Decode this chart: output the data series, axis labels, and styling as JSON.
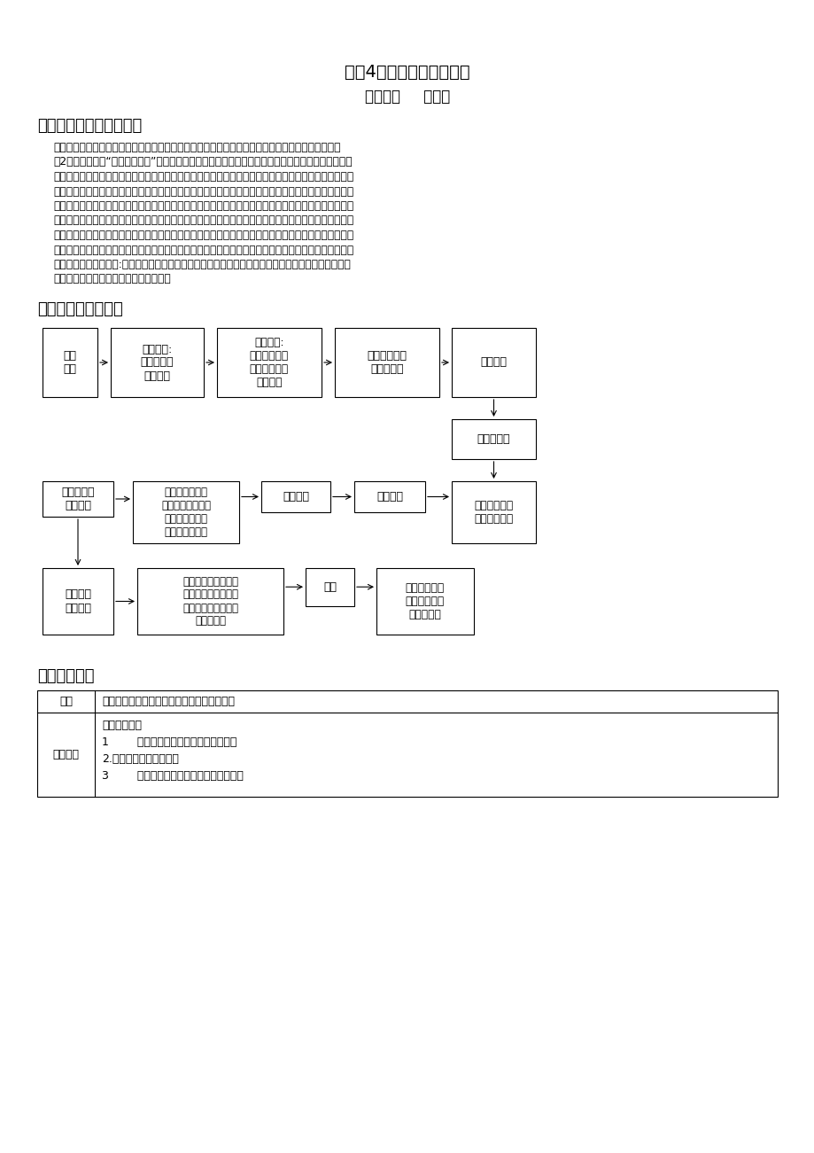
{
  "title1": "选修4第四章第一节原电池",
  "title2": "黄冈中学     甘文广",
  "section1": "一、教材分析与设计思路",
  "section2": "二、教学流程示意图",
  "section3": "三、教学设计",
  "para_lines": [
    "原电池是中学电化学基础知识，也是学生了解化学原理应用于生活实际的重要切入点之一。在必修化",
    "学2第二章第二节“化学能与电能”部分，学生已初步掌握将化学能转化为电能的途径，已有原电池、正",
    "极、负极、电解质溶液的概念。选修四第四章第一节通过探究实验，学生发现单液原电池电流不稳、放电",
    "效率低等缺点，激发学生解决问题的欲望，引导学生设计解决方案，培养学生科学探究能力，激发学生学",
    "习化学的兴趣。紧接着理论回归生活实际，让学生体会到化学在生活中的魅力。然后展示近三年中国原电",
    "池的研究成果，进一步激发学生研究原电池的热情，然后提供中学化学中的常见物质，满足学生自主设计",
    "并组装新的双液电池的求知欲，初步理解氧化还原反应与原电池的关系。学生展示研究成果，增强学生学",
    "习化学的自信心和自豪感。最后通过讨论，升华学生对原电池反应的认识，总结出原电池与氧化还原反应",
    "的关系，让学生认识到:原电池的反应原理和原电池反应所遵循的规律原来自己早已经掌握，化学的学习",
    "也不难，体会化学知识之间融合的乐趣。"
  ],
  "bg_color": "#ffffff",
  "text_color": "#000000",
  "box_bg": "#ffffff",
  "box_border": "#000000"
}
